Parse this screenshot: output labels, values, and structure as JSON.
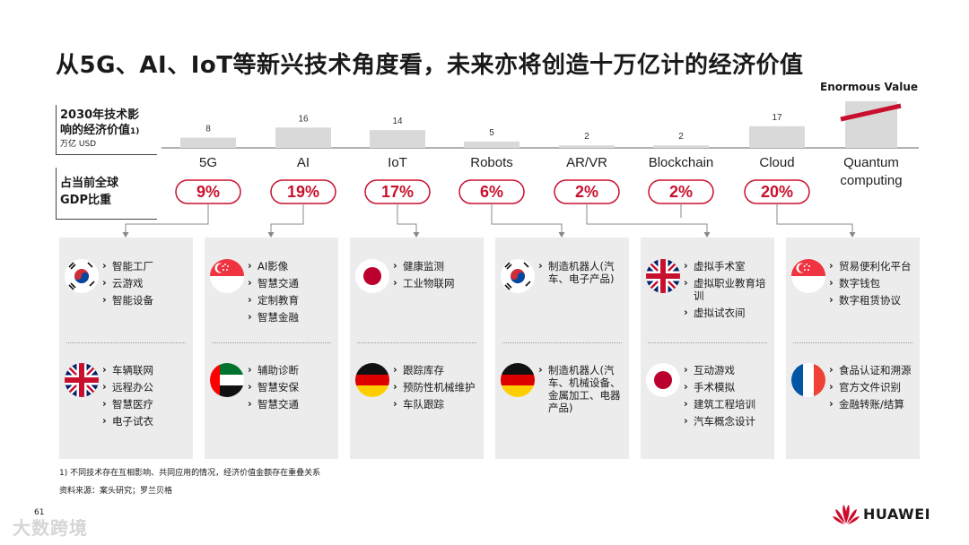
{
  "title": "从5G、AI、IoT等新兴技术角度看，未来亦将创造十万亿计的经济价值",
  "enormous_value": "Enormous Value",
  "labels": {
    "value_label": "2030年技术影响的经济价值1)",
    "unit": "万亿 USD",
    "gdp_label": "占当前全球GDP比重"
  },
  "colors": {
    "accent": "#c8102e",
    "bar": "#d9d9d9",
    "panel": "#ececec"
  },
  "chart_data": {
    "type": "bar",
    "categories": [
      "5G",
      "AI",
      "IoT",
      "Robots",
      "AR/VR",
      "Blockchain",
      "Cloud",
      "Quantum computing"
    ],
    "values": [
      8,
      16,
      14,
      5,
      2,
      2,
      17,
      null
    ],
    "value_labels": [
      "8",
      "16",
      "14",
      "5",
      "2",
      "2",
      "17",
      ""
    ],
    "gdp_share": [
      "9%",
      "19%",
      "17%",
      "6%",
      "2%",
      "2%",
      "20%",
      ""
    ],
    "annotations": [
      "Enormous Value"
    ],
    "ylabel": "2030年技术影响的经济价值1) 万亿 USD"
  },
  "panels": [
    {
      "groups": [
        {
          "flag": "korea-flag",
          "items": [
            "智能工厂",
            "云游戏",
            "智能设备"
          ]
        },
        {
          "flag": "uk-flag",
          "items": [
            "车辆联网",
            "远程办公",
            "智慧医疗",
            "电子试衣"
          ]
        }
      ]
    },
    {
      "groups": [
        {
          "flag": "singapore-flag",
          "items": [
            "AI影像",
            "智慧交通",
            "定制教育",
            "智慧金融"
          ]
        },
        {
          "flag": "uae-flag",
          "items": [
            "辅助诊断",
            "智慧安保",
            "智慧交通"
          ]
        }
      ]
    },
    {
      "groups": [
        {
          "flag": "japan-flag",
          "items": [
            "健康监测",
            "工业物联网"
          ]
        },
        {
          "flag": "germany-flag",
          "items": [
            "跟踪库存",
            "预防性机械维护",
            "车队跟踪"
          ]
        }
      ]
    },
    {
      "groups": [
        {
          "flag": "korea-flag",
          "items": [
            "制造机器人(汽车、电子产品)"
          ]
        },
        {
          "flag": "germany-flag",
          "items": [
            "制造机器人(汽车、机械设备、金属加工、电器产品)"
          ]
        }
      ]
    },
    {
      "groups": [
        {
          "flag": "uk-flag",
          "items": [
            "虚拟手术室",
            "虚拟职业教育培训",
            "虚拟试衣间"
          ]
        },
        {
          "flag": "japan-flag",
          "items": [
            "互动游戏",
            "手术模拟",
            "建筑工程培训",
            "汽车概念设计"
          ]
        }
      ]
    },
    {
      "groups": [
        {
          "flag": "singapore-flag",
          "items": [
            "贸易便利化平台",
            "数字钱包",
            "数字租赁协议"
          ]
        },
        {
          "flag": "france-flag",
          "items": [
            "食品认证和溯源",
            "官方文件识别",
            "金融转账/结算"
          ]
        }
      ]
    }
  ],
  "footnote": "1) 不同技术存在互相影响、共同应用的情况，经济价值金额存在重叠关系",
  "source": "资料来源：案头研究；罗兰贝格",
  "page_number": "61",
  "watermark": "大数跨境",
  "logo_text": "HUAWEI"
}
